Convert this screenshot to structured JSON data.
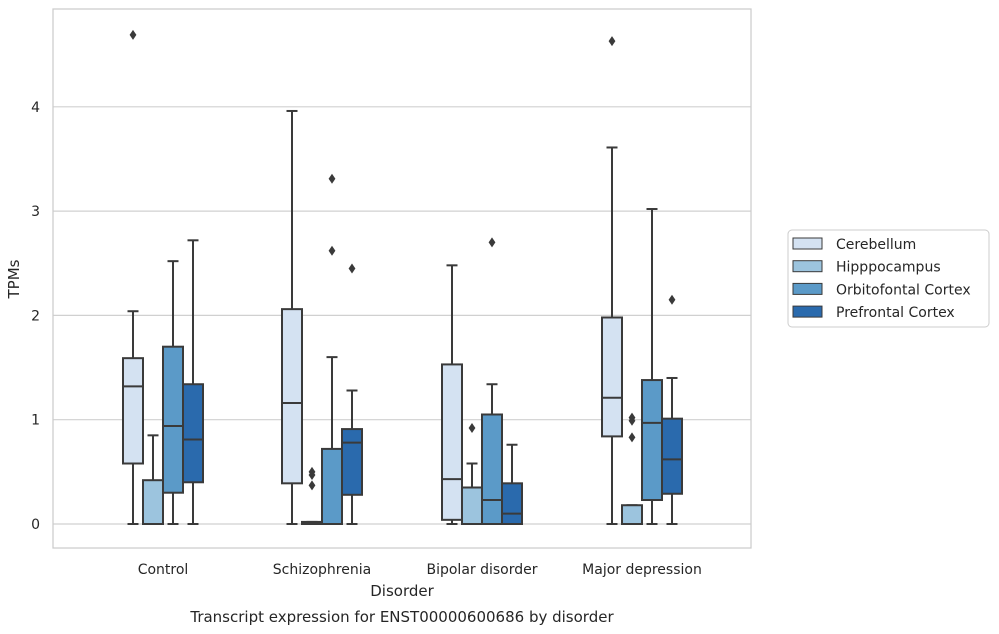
{
  "chart_data": {
    "type": "box",
    "caption": "Transcript expression for ENST00000600686 by disorder",
    "xlabel": "Disorder",
    "ylabel": "TPMs",
    "ylim": [
      -0.22,
      4.9
    ],
    "yticks": [
      0,
      1,
      2,
      3,
      4
    ],
    "grid": "horizontal",
    "legend_position": "right",
    "categories": [
      "Control",
      "Schizophrenia",
      "Bipolar disorder",
      "Major depression"
    ],
    "series": [
      {
        "name": "Cerebellum",
        "color": "#d4e2f2",
        "boxes": [
          {
            "whislo": 0,
            "q1": 0.58,
            "median": 1.32,
            "q3": 1.59,
            "whishi": 2.04,
            "fliers": [
              4.69
            ]
          },
          {
            "whislo": 0,
            "q1": 0.39,
            "median": 1.16,
            "q3": 2.06,
            "whishi": 3.96,
            "fliers": []
          },
          {
            "whislo": 0,
            "q1": 0.04,
            "median": 0.43,
            "q3": 1.53,
            "whishi": 2.48,
            "fliers": []
          },
          {
            "whislo": 0,
            "q1": 0.84,
            "median": 1.21,
            "q3": 1.98,
            "whishi": 3.61,
            "fliers": [
              4.63
            ]
          }
        ]
      },
      {
        "name": "Hipppocampus",
        "color": "#9cc4de",
        "boxes": [
          {
            "whislo": 0,
            "q1": 0,
            "median": 0,
            "q3": 0.42,
            "whishi": 0.85,
            "fliers": []
          },
          {
            "whislo": 0,
            "q1": 0,
            "median": 0.01,
            "q3": 0.02,
            "whishi": 0.02,
            "fliers": [
              0.37,
              0.47,
              0.5
            ]
          },
          {
            "whislo": 0,
            "q1": 0,
            "median": 0.35,
            "q3": 0.35,
            "whishi": 0.58,
            "fliers": [
              0.92
            ]
          },
          {
            "whislo": 0,
            "q1": 0,
            "median": 0,
            "q3": 0.18,
            "whishi": 0.18,
            "fliers": [
              0.83,
              0.99,
              1.02
            ]
          }
        ]
      },
      {
        "name": "Orbitofontal Cortex",
        "color": "#5b9ac8",
        "boxes": [
          {
            "whislo": 0,
            "q1": 0.3,
            "median": 0.94,
            "q3": 1.7,
            "whishi": 2.52,
            "fliers": []
          },
          {
            "whislo": 0,
            "q1": 0,
            "median": 0,
            "q3": 0.72,
            "whishi": 1.6,
            "fliers": [
              2.62,
              3.31
            ]
          },
          {
            "whislo": 0,
            "q1": 0,
            "median": 0.23,
            "q3": 1.05,
            "whishi": 1.34,
            "fliers": [
              2.7
            ]
          },
          {
            "whislo": 0,
            "q1": 0.23,
            "median": 0.97,
            "q3": 1.38,
            "whishi": 3.02,
            "fliers": []
          }
        ]
      },
      {
        "name": "Prefrontal Cortex",
        "color": "#2a6aad",
        "boxes": [
          {
            "whislo": 0,
            "q1": 0.4,
            "median": 0.81,
            "q3": 1.34,
            "whishi": 2.72,
            "fliers": []
          },
          {
            "whislo": 0,
            "q1": 0.28,
            "median": 0.78,
            "q3": 0.91,
            "whishi": 1.28,
            "fliers": [
              2.45
            ]
          },
          {
            "whislo": 0,
            "q1": 0,
            "median": 0.1,
            "q3": 0.39,
            "whishi": 0.76,
            "fliers": []
          },
          {
            "whislo": 0,
            "q1": 0.29,
            "median": 0.62,
            "q3": 1.01,
            "whishi": 1.4,
            "fliers": [
              2.15
            ]
          }
        ]
      }
    ]
  }
}
